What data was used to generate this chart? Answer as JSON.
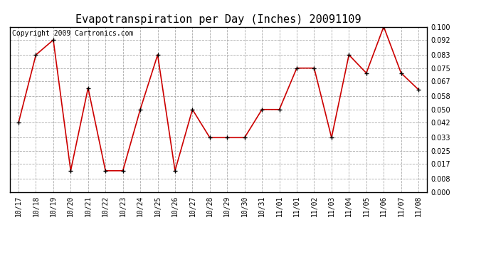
{
  "title": "Evapotranspiration per Day (Inches) 20091109",
  "copyright": "Copyright 2009 Cartronics.com",
  "labels": [
    "10/17",
    "10/18",
    "10/19",
    "10/20",
    "10/21",
    "10/22",
    "10/23",
    "10/24",
    "10/25",
    "10/26",
    "10/27",
    "10/28",
    "10/29",
    "10/30",
    "10/31",
    "11/01",
    "11/01",
    "11/02",
    "11/03",
    "11/04",
    "11/05",
    "11/06",
    "11/07",
    "11/08"
  ],
  "values": [
    0.042,
    0.083,
    0.092,
    0.013,
    0.063,
    0.013,
    0.013,
    0.05,
    0.083,
    0.013,
    0.05,
    0.033,
    0.033,
    0.033,
    0.05,
    0.05,
    0.075,
    0.075,
    0.033,
    0.083,
    0.072,
    0.1,
    0.072,
    0.062
  ],
  "yticks": [
    0.0,
    0.008,
    0.017,
    0.025,
    0.033,
    0.042,
    0.05,
    0.058,
    0.067,
    0.075,
    0.083,
    0.092,
    0.1
  ],
  "ylim": [
    0.0,
    0.1
  ],
  "line_color": "#cc0000",
  "marker": "+",
  "marker_size": 5,
  "marker_color": "#000000",
  "background_color": "#ffffff",
  "grid_color": "#aaaaaa",
  "title_fontsize": 11,
  "copyright_fontsize": 7,
  "tick_fontsize": 7
}
